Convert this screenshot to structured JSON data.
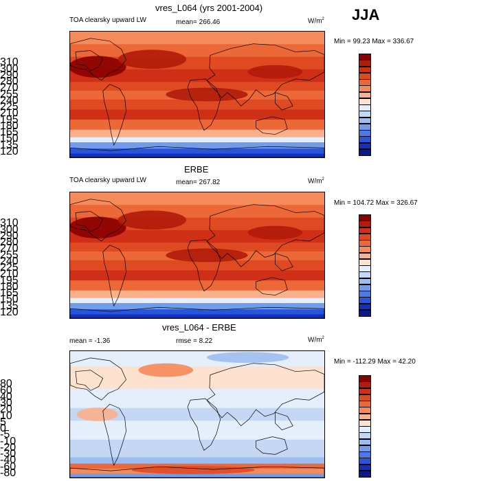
{
  "season": "JJA",
  "panels": [
    {
      "title": "vres_L064 (yrs 2001-2004)",
      "left_label": "TOA clearsky upward LW",
      "center_label": "mean= 266.46",
      "units": "W/m",
      "units_sup": "2",
      "minmax": "Min =  99.23 Max = 336.67",
      "kind": "abs",
      "colorbar_labels": [
        "310",
        "300",
        "290",
        "280",
        "270",
        "255",
        "240",
        "225",
        "210",
        "195",
        "180",
        "165",
        "150",
        "135",
        "120"
      ],
      "colors": [
        "#8b0000",
        "#b11b0a",
        "#cf2f17",
        "#e04a23",
        "#ec6837",
        "#f58a5a",
        "#fbb08c",
        "#fde2cf",
        "#e5eefb",
        "#c4d8f5",
        "#9dbdf0",
        "#729bea",
        "#4b79e6",
        "#2a54db",
        "#1030c0",
        "#0a1a8c"
      ]
    },
    {
      "title": "ERBE",
      "left_label": "TOA clearsky upward LW",
      "center_label": "mean= 267.82",
      "units": "W/m",
      "units_sup": "2",
      "minmax": "Min = 104.72 Max = 326.67",
      "kind": "abs",
      "colorbar_labels": [
        "310",
        "300",
        "290",
        "280",
        "270",
        "255",
        "240",
        "225",
        "210",
        "195",
        "180",
        "165",
        "150",
        "135",
        "120"
      ],
      "colors": [
        "#8b0000",
        "#b11b0a",
        "#cf2f17",
        "#e04a23",
        "#ec6837",
        "#f58a5a",
        "#fbb08c",
        "#fde2cf",
        "#e5eefb",
        "#c4d8f5",
        "#9dbdf0",
        "#729bea",
        "#4b79e6",
        "#2a54db",
        "#1030c0",
        "#0a1a8c"
      ]
    },
    {
      "title": "vres_L064 - ERBE",
      "left_label": "mean =  -1.36",
      "center_label": "rmse =   8.22",
      "units": "W/m",
      "units_sup": "2",
      "minmax": "Min = -112.29 Max =  42.20",
      "kind": "diff",
      "colorbar_labels": [
        "80",
        "60",
        "40",
        "30",
        "20",
        "10",
        "5",
        "0",
        "-5",
        "-10",
        "-20",
        "-30",
        "-40",
        "-60",
        "-80"
      ],
      "colors": [
        "#8b0000",
        "#b11b0a",
        "#cf2f17",
        "#e04a23",
        "#ec6837",
        "#f58a5a",
        "#fbb08c",
        "#fde2cf",
        "#e5eefb",
        "#c4d8f5",
        "#9dbdf0",
        "#729bea",
        "#4b79e6",
        "#2a54db",
        "#1030c0",
        "#0a1a8c"
      ]
    }
  ]
}
